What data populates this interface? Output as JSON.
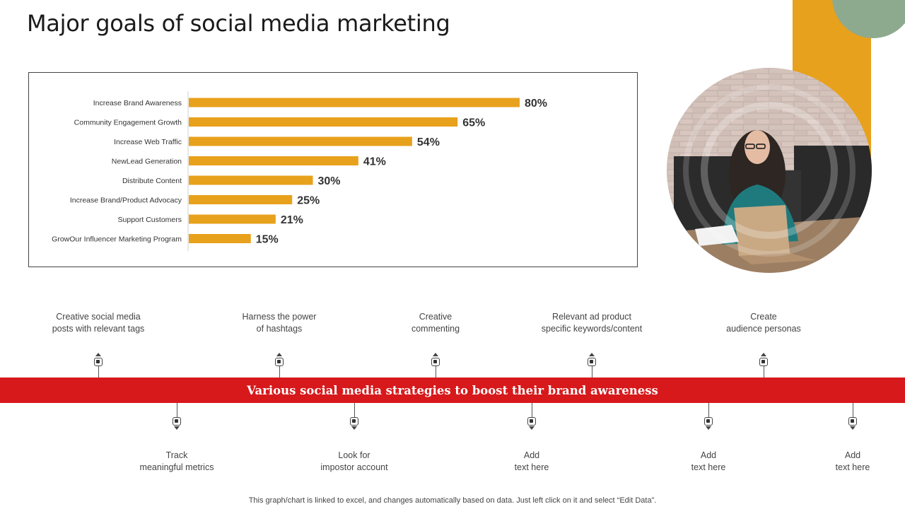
{
  "page": {
    "title": "Major goals of social media marketing",
    "footnote": "This graph/chart is linked to excel,  and changes automatically based on data. Just left click on it and select “Edit Data”."
  },
  "colors": {
    "accent_orange": "#E8A11C",
    "accent_green": "#8DAA8F",
    "strategy_red": "#D7191C",
    "bar": "#E8A11C"
  },
  "chart_data": {
    "type": "bar",
    "orientation": "horizontal",
    "categories": [
      "Increase Brand Awareness",
      "Community Engagement Growth",
      "Increase Web Traffic",
      "NewLead Generation",
      "Distribute Content",
      "Increase Brand/Product Advocacy",
      "Support Customers",
      "GrowOur Influencer Marketing Program"
    ],
    "values": [
      80,
      65,
      54,
      41,
      30,
      25,
      21,
      15
    ],
    "value_labels": [
      "80%",
      "65%",
      "54%",
      "41%",
      "30%",
      "25%",
      "21%",
      "15%"
    ],
    "xlim": [
      0,
      100
    ],
    "grid": false,
    "legend": "none"
  },
  "strategy": {
    "title": "Various social media strategies to boost their brand awareness",
    "top_items": [
      "Creative  social media\nposts with relevant  tags",
      "Harness  the power\nof hashtags",
      "Creative\ncommenting",
      "Relevant  ad product\nspecific keywords/content",
      "Create\naudience personas"
    ],
    "bottom_items": [
      "Track\nmeaningful  metrics",
      "Look for\nimpostor account",
      "Add\ntext here",
      "Add\ntext here",
      "Add\ntext here"
    ]
  },
  "photo": {
    "icon": "woman-with-laptop-photo"
  }
}
